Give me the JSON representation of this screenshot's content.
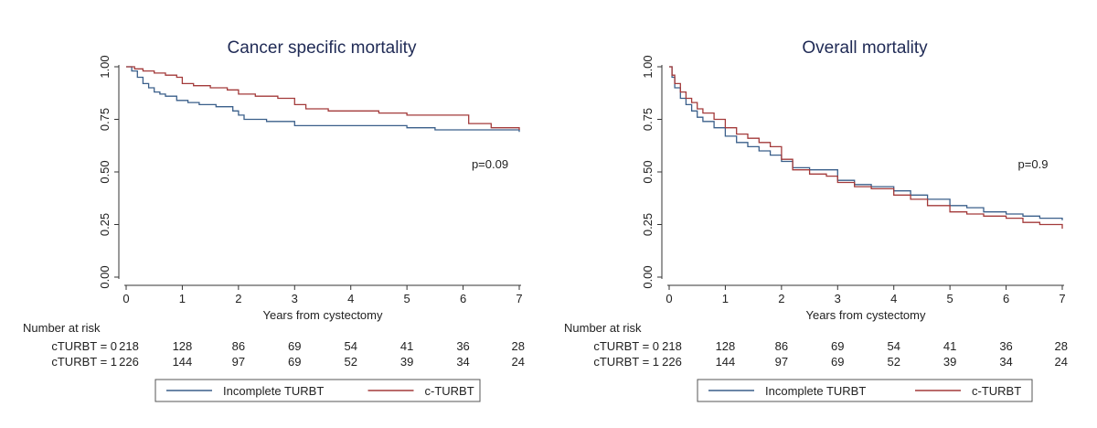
{
  "chart_data": [
    {
      "type": "line",
      "title": "Cancer specific mortality",
      "xlabel": "Years from cystectomy",
      "ylabel": "",
      "xlim": [
        0,
        7
      ],
      "ylim": [
        0,
        1
      ],
      "x_ticks": [
        "0",
        "1",
        "2",
        "3",
        "4",
        "5",
        "6",
        "7"
      ],
      "y_ticks": [
        "0.00",
        "0.25",
        "0.50",
        "0.75",
        "1.00"
      ],
      "annotation": "p=0.09",
      "legend_placement": "bottom",
      "series": [
        {
          "name": "Incomplete TURBT",
          "color": "#3a5f8a",
          "x": [
            0,
            0.1,
            0.2,
            0.3,
            0.4,
            0.5,
            0.6,
            0.7,
            0.9,
            1.1,
            1.3,
            1.6,
            1.9,
            2.0,
            2.1,
            2.5,
            3.0,
            3.5,
            4.0,
            4.5,
            5.0,
            5.5,
            6.0,
            6.5,
            7.0
          ],
          "y": [
            1.0,
            0.98,
            0.95,
            0.92,
            0.9,
            0.88,
            0.87,
            0.86,
            0.84,
            0.83,
            0.82,
            0.81,
            0.79,
            0.77,
            0.75,
            0.74,
            0.72,
            0.72,
            0.72,
            0.72,
            0.71,
            0.7,
            0.7,
            0.7,
            0.69
          ]
        },
        {
          "name": "c-TURBT",
          "color": "#a33a3a",
          "x": [
            0,
            0.15,
            0.3,
            0.5,
            0.7,
            0.9,
            1.0,
            1.2,
            1.5,
            1.8,
            2.0,
            2.3,
            2.7,
            3.0,
            3.2,
            3.6,
            4.0,
            4.5,
            5.0,
            5.5,
            6.0,
            6.1,
            6.5,
            7.0
          ],
          "y": [
            1.0,
            0.99,
            0.98,
            0.97,
            0.96,
            0.95,
            0.92,
            0.91,
            0.9,
            0.89,
            0.87,
            0.86,
            0.85,
            0.82,
            0.8,
            0.79,
            0.79,
            0.78,
            0.77,
            0.77,
            0.77,
            0.73,
            0.71,
            0.7
          ]
        }
      ]
    },
    {
      "type": "line",
      "title": "Overall mortality",
      "xlabel": "Years from cystectomy",
      "ylabel": "",
      "xlim": [
        0,
        7
      ],
      "ylim": [
        0,
        1
      ],
      "x_ticks": [
        "0",
        "1",
        "2",
        "3",
        "4",
        "5",
        "6",
        "7"
      ],
      "y_ticks": [
        "0.00",
        "0.25",
        "0.50",
        "0.75",
        "1.00"
      ],
      "annotation": "p=0.9",
      "legend_placement": "bottom",
      "series": [
        {
          "name": "Incomplete TURBT",
          "color": "#3a5f8a",
          "x": [
            0,
            0.05,
            0.1,
            0.2,
            0.3,
            0.4,
            0.5,
            0.6,
            0.8,
            1.0,
            1.2,
            1.4,
            1.6,
            1.8,
            2.0,
            2.2,
            2.5,
            2.8,
            3.0,
            3.3,
            3.6,
            4.0,
            4.3,
            4.6,
            5.0,
            5.3,
            5.6,
            6.0,
            6.3,
            6.6,
            7.0
          ],
          "y": [
            1.0,
            0.95,
            0.9,
            0.85,
            0.82,
            0.79,
            0.76,
            0.74,
            0.71,
            0.67,
            0.64,
            0.62,
            0.6,
            0.58,
            0.55,
            0.52,
            0.51,
            0.51,
            0.46,
            0.44,
            0.43,
            0.41,
            0.39,
            0.37,
            0.34,
            0.33,
            0.31,
            0.3,
            0.29,
            0.28,
            0.27
          ]
        },
        {
          "name": "c-TURBT",
          "color": "#a33a3a",
          "x": [
            0,
            0.05,
            0.1,
            0.2,
            0.3,
            0.4,
            0.5,
            0.6,
            0.8,
            1.0,
            1.2,
            1.4,
            1.6,
            1.8,
            2.0,
            2.2,
            2.5,
            2.8,
            3.0,
            3.3,
            3.6,
            4.0,
            4.3,
            4.6,
            5.0,
            5.3,
            5.6,
            6.0,
            6.3,
            6.6,
            7.0
          ],
          "y": [
            1.0,
            0.96,
            0.92,
            0.88,
            0.85,
            0.83,
            0.8,
            0.78,
            0.75,
            0.71,
            0.68,
            0.66,
            0.64,
            0.62,
            0.56,
            0.51,
            0.49,
            0.48,
            0.45,
            0.43,
            0.42,
            0.39,
            0.37,
            0.34,
            0.31,
            0.3,
            0.29,
            0.28,
            0.26,
            0.25,
            0.23
          ]
        }
      ]
    }
  ],
  "risk_table": {
    "heading": "Number at risk",
    "rows": [
      {
        "label": "cTURBT = 0",
        "values": [
          "218",
          "128",
          "86",
          "69",
          "54",
          "41",
          "36",
          "28"
        ]
      },
      {
        "label": "cTURBT = 1",
        "values": [
          "226",
          "144",
          "97",
          "69",
          "52",
          "39",
          "34",
          "24"
        ]
      }
    ]
  }
}
